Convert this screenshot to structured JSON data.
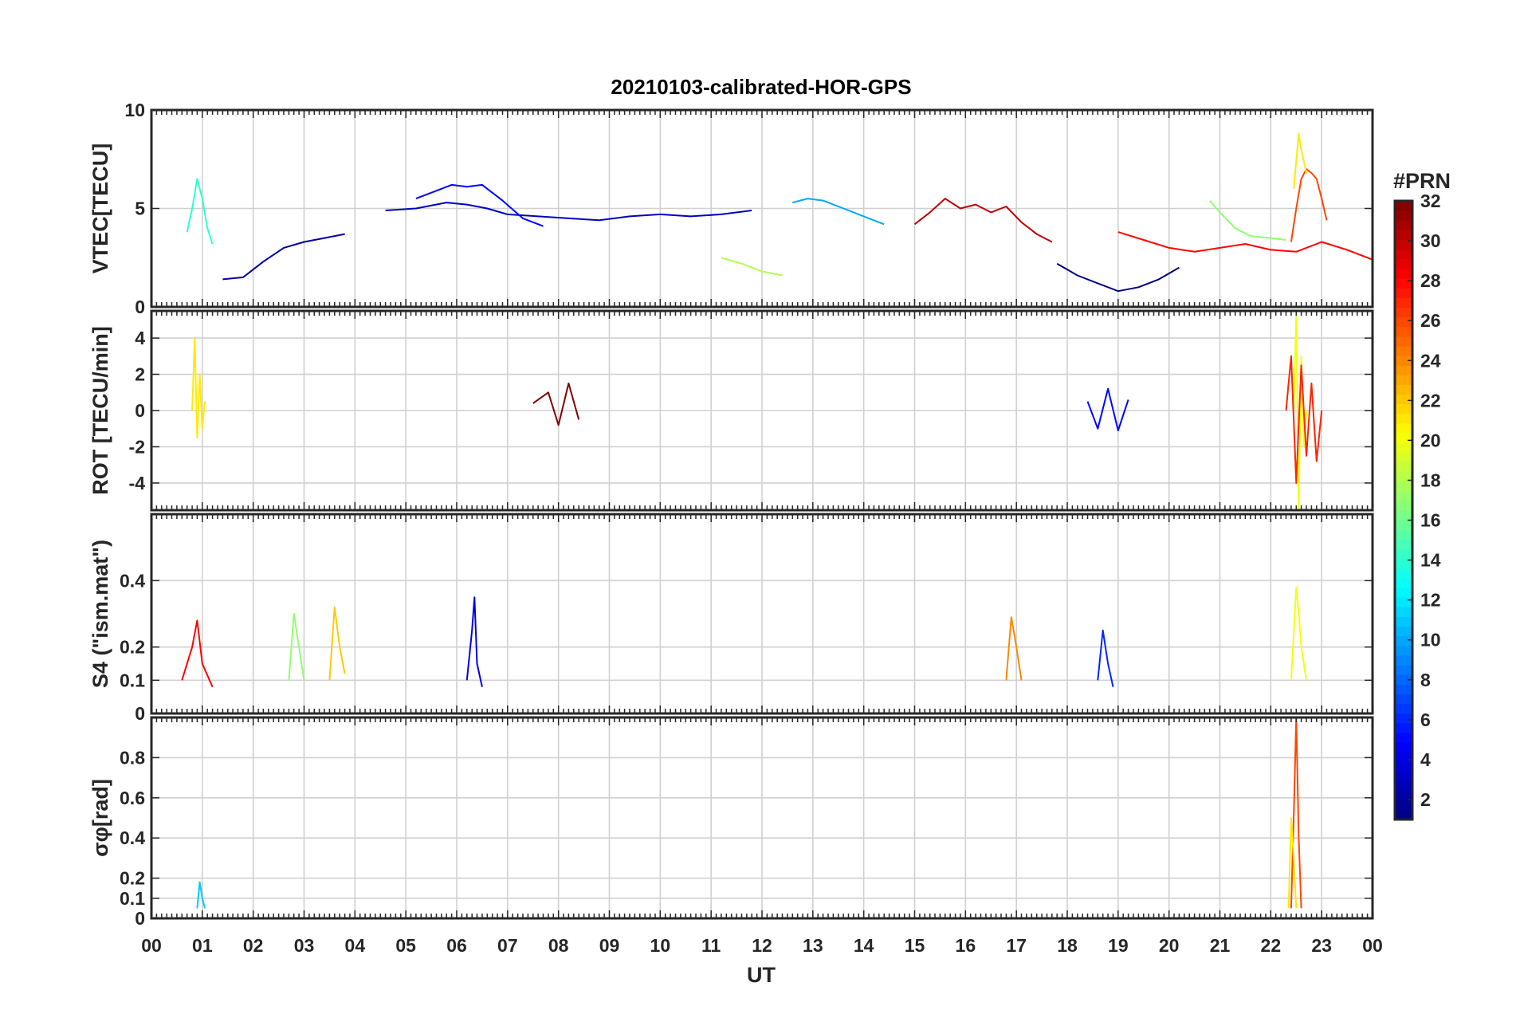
{
  "chart_data": {
    "type": "line",
    "title": "20210103-calibrated-HOR-GPS",
    "xlabel": "UT",
    "x_ticks": [
      "00",
      "01",
      "02",
      "03",
      "04",
      "05",
      "06",
      "07",
      "08",
      "09",
      "10",
      "11",
      "12",
      "13",
      "14",
      "15",
      "16",
      "17",
      "18",
      "19",
      "20",
      "21",
      "22",
      "23",
      "00"
    ],
    "xlim": [
      0,
      24
    ],
    "grid": true,
    "panels": [
      {
        "ylabel": "VTEC[TECU]",
        "ylim": [
          0,
          10
        ],
        "yticks": [
          0,
          5,
          10
        ],
        "series": [
          {
            "prn": 3,
            "x": [
              4.6,
              5.2,
              5.8,
              6.2,
              6.6,
              7.0,
              7.6,
              8.2,
              8.8,
              9.4,
              10.0,
              10.6,
              11.2,
              11.8
            ],
            "y": [
              4.9,
              5.0,
              5.3,
              5.2,
              5.0,
              4.7,
              4.6,
              4.5,
              4.4,
              4.6,
              4.7,
              4.6,
              4.7,
              4.9
            ]
          },
          {
            "prn": 5,
            "x": [
              5.2,
              5.6,
              5.9,
              6.2,
              6.5,
              6.9,
              7.3,
              7.7
            ],
            "y": [
              5.5,
              5.9,
              6.2,
              6.1,
              6.2,
              5.4,
              4.5,
              4.1
            ]
          },
          {
            "prn": 2,
            "x": [
              1.4,
              1.8,
              2.2,
              2.6,
              3.0,
              3.4,
              3.8
            ],
            "y": [
              1.4,
              1.5,
              2.3,
              3.0,
              3.3,
              3.5,
              3.7
            ]
          },
          {
            "prn": 26,
            "x": [
              22.4,
              22.5,
              22.6,
              22.7,
              22.8,
              22.9,
              23.0,
              23.1
            ],
            "y": [
              3.3,
              5.0,
              6.5,
              7.0,
              6.8,
              6.5,
              5.5,
              4.4
            ]
          },
          {
            "prn": 21,
            "x": [
              22.45,
              22.55,
              22.6,
              22.7
            ],
            "y": [
              6.0,
              8.8,
              8.0,
              6.8
            ]
          },
          {
            "prn": 30,
            "x": [
              15.0,
              15.3,
              15.6,
              15.9,
              16.2,
              16.5,
              16.8,
              17.1,
              17.4,
              17.7
            ],
            "y": [
              4.2,
              4.8,
              5.5,
              5.0,
              5.2,
              4.8,
              5.1,
              4.3,
              3.7,
              3.3
            ]
          },
          {
            "prn": 14,
            "x": [
              0.7,
              0.8,
              0.9,
              1.0,
              1.1,
              1.2
            ],
            "y": [
              3.8,
              5.0,
              6.5,
              5.5,
              4.0,
              3.2
            ]
          },
          {
            "prn": 28,
            "x": [
              19.0,
              19.5,
              20.0,
              20.5,
              21.0,
              21.5,
              22.0,
              22.5,
              23.0,
              23.5,
              24.0
            ],
            "y": [
              3.8,
              3.4,
              3.0,
              2.8,
              3.0,
              3.2,
              2.9,
              2.8,
              3.3,
              2.9,
              2.4
            ]
          },
          {
            "prn": 17,
            "x": [
              20.8,
              21.0,
              21.3,
              21.6,
              22.0,
              22.3
            ],
            "y": [
              5.4,
              4.8,
              4.0,
              3.6,
              3.5,
              3.4
            ]
          },
          {
            "prn": 10,
            "x": [
              12.6,
              12.9,
              13.2,
              13.5,
              13.8,
              14.1,
              14.4
            ],
            "y": [
              5.3,
              5.5,
              5.4,
              5.1,
              4.8,
              4.5,
              4.2
            ]
          },
          {
            "prn": 1,
            "x": [
              17.8,
              18.2,
              18.6,
              19.0,
              19.4,
              19.8,
              20.2
            ],
            "y": [
              2.2,
              1.6,
              1.2,
              0.8,
              1.0,
              1.4,
              2.0
            ]
          },
          {
            "prn": 18,
            "x": [
              11.2,
              11.6,
              12.0,
              12.4
            ],
            "y": [
              2.5,
              2.2,
              1.8,
              1.6
            ]
          }
        ]
      },
      {
        "ylabel": "ROT [TECU/min]",
        "ylim": [
          -5.5,
          5.5
        ],
        "yticks": [
          -4,
          -2,
          0,
          2,
          4
        ],
        "series": [
          {
            "prn": 21,
            "x": [
              0.8,
              0.85,
              0.9,
              0.95,
              1.0,
              1.05
            ],
            "y": [
              0,
              4.0,
              -1.5,
              2.0,
              -1.0,
              0.5
            ]
          },
          {
            "prn": 20,
            "x": [
              22.45,
              22.5,
              22.55,
              22.6,
              22.65,
              22.7
            ],
            "y": [
              0,
              5.2,
              -5.5,
              3.0,
              -2.0,
              0
            ]
          },
          {
            "prn": 27,
            "x": [
              22.3,
              22.4,
              22.5,
              22.6,
              22.7,
              22.8,
              22.9,
              23.0
            ],
            "y": [
              0,
              3.0,
              -4.0,
              2.5,
              -2.5,
              1.5,
              -2.8,
              0
            ]
          },
          {
            "prn": 32,
            "x": [
              7.5,
              7.8,
              8.0,
              8.2,
              8.4
            ],
            "y": [
              0.4,
              1.0,
              -0.8,
              1.5,
              -0.5
            ]
          },
          {
            "prn": 5,
            "x": [
              18.4,
              18.6,
              18.8,
              19.0,
              19.2
            ],
            "y": [
              0.5,
              -1.0,
              1.2,
              -1.1,
              0.6
            ]
          }
        ]
      },
      {
        "ylabel": "S4 (\"ism.mat\")",
        "ylim": [
          0,
          0.6
        ],
        "yticks": [
          0,
          0.1,
          0.2,
          0.4
        ],
        "series": [
          {
            "prn": 4,
            "x": [
              6.2,
              6.3,
              6.35,
              6.4,
              6.5
            ],
            "y": [
              0.1,
              0.25,
              0.35,
              0.15,
              0.08
            ]
          },
          {
            "prn": 20,
            "x": [
              22.4,
              22.5,
              22.55,
              22.6,
              22.7
            ],
            "y": [
              0.1,
              0.38,
              0.3,
              0.2,
              0.1
            ]
          },
          {
            "prn": 28,
            "x": [
              0.6,
              0.8,
              0.9,
              1.0,
              1.2
            ],
            "y": [
              0.1,
              0.2,
              0.28,
              0.15,
              0.08
            ]
          },
          {
            "prn": 22,
            "x": [
              3.5,
              3.6,
              3.7,
              3.8
            ],
            "y": [
              0.1,
              0.32,
              0.2,
              0.12
            ]
          },
          {
            "prn": 17,
            "x": [
              2.7,
              2.8,
              2.9,
              3.0
            ],
            "y": [
              0.1,
              0.3,
              0.2,
              0.1
            ]
          },
          {
            "prn": 24,
            "x": [
              16.8,
              16.9,
              17.0,
              17.1
            ],
            "y": [
              0.1,
              0.29,
              0.2,
              0.1
            ]
          },
          {
            "prn": 6,
            "x": [
              18.6,
              18.7,
              18.8,
              18.9
            ],
            "y": [
              0.1,
              0.25,
              0.15,
              0.08
            ]
          }
        ]
      },
      {
        "ylabel": "σφ[rad]",
        "ylim": [
          0,
          1.0
        ],
        "yticks": [
          0,
          0.1,
          0.2,
          0.4,
          0.6,
          0.8
        ],
        "series": [
          {
            "prn": 26,
            "x": [
              22.4,
              22.45,
              22.5,
              22.55,
              22.6
            ],
            "y": [
              0.05,
              0.5,
              1.0,
              0.4,
              0.05
            ]
          },
          {
            "prn": 21,
            "x": [
              22.35,
              22.4,
              22.45,
              22.5
            ],
            "y": [
              0.05,
              0.5,
              0.3,
              0.05
            ]
          },
          {
            "prn": 11,
            "x": [
              0.9,
              0.95,
              1.0,
              1.05
            ],
            "y": [
              0.05,
              0.18,
              0.1,
              0.05
            ]
          }
        ]
      }
    ],
    "colorbar": {
      "label": "#PRN",
      "range": [
        1,
        32
      ],
      "ticks": [
        2,
        4,
        6,
        8,
        10,
        12,
        14,
        16,
        18,
        20,
        22,
        24,
        26,
        28,
        30,
        32
      ],
      "colormap": "jet"
    }
  }
}
